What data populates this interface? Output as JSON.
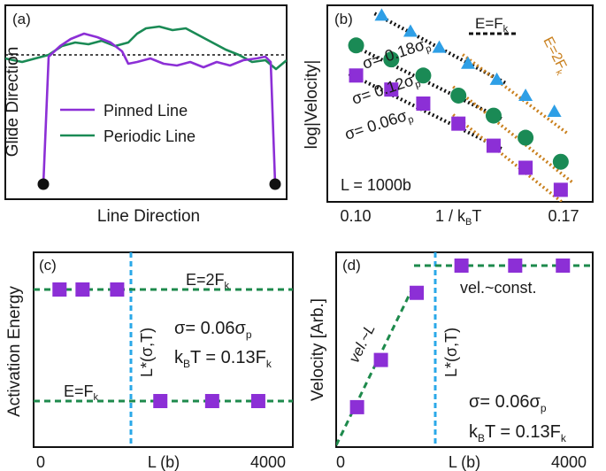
{
  "colors": {
    "purple": "#8c2fd6",
    "green": "#1a8a55",
    "blue_triangle": "#2e9fe6",
    "orange": "#c9801e",
    "dashed_green": "#1e8a4c",
    "dashed_blue": "#2aa8e8",
    "black": "#111111"
  },
  "chart_data": [
    {
      "panel": "(a)",
      "type": "line",
      "xlabel": "Line Direction",
      "ylabel": "Glide Direction",
      "legend": [
        "Pinned Line",
        "Periodic Line"
      ],
      "legend_placement": "center",
      "series": [
        {
          "name": "Pinned Line",
          "endpoints_pinned": true
        },
        {
          "name": "Periodic Line"
        }
      ],
      "reference_line": "dashed horizontal at zero"
    },
    {
      "panel": "(b)",
      "type": "scatter",
      "xlabel": "1 / k_BT",
      "ylabel": "log|Velocity|",
      "xticks": [
        "0.10",
        "0.17"
      ],
      "annotation_L": "L = 1000b",
      "fit_labels": {
        "E1": "E=F",
        "E1_sub": "k",
        "E2": "E=2F",
        "E2_sub": "k"
      },
      "series": [
        {
          "name": "σ= 0.18σp",
          "label_main": "σ= 0.18σ",
          "label_sub": "p",
          "marker": "triangle",
          "x": [
            0.112,
            0.121,
            0.13,
            0.139,
            0.148,
            0.157,
            0.166
          ],
          "y": [
            6.05,
            5.65,
            5.25,
            4.85,
            4.45,
            4.05,
            3.65
          ]
        },
        {
          "name": "σ= 0.12σp",
          "label_main": "σ= 0.12σ",
          "label_sub": "p",
          "marker": "circle",
          "x": [
            0.104,
            0.115,
            0.125,
            0.136,
            0.147,
            0.157,
            0.168
          ],
          "y": [
            5.3,
            4.95,
            4.55,
            4.05,
            3.55,
            3.0,
            2.4
          ]
        },
        {
          "name": "σ= 0.06σp",
          "label_main": "σ= 0.06σ",
          "label_sub": "p",
          "marker": "square",
          "x": [
            0.104,
            0.115,
            0.125,
            0.136,
            0.147,
            0.157,
            0.168
          ],
          "y": [
            4.55,
            4.2,
            3.85,
            3.35,
            2.8,
            2.25,
            1.7
          ]
        }
      ]
    },
    {
      "panel": "(c)",
      "type": "scatter",
      "xlabel": "L (b)",
      "ylabel": "Activation Energy",
      "xticks": [
        "0",
        "4000"
      ],
      "xlim": [
        0,
        4000
      ],
      "vertical_label": "L*(σ,T)",
      "lines": [
        {
          "label_main": "E=2F",
          "label_sub": "k"
        },
        {
          "label_main": "E=F",
          "label_sub": "k"
        }
      ],
      "param_sigma_main": "σ= 0.06σ",
      "param_sigma_sub": "p",
      "param_T_main": "k",
      "param_T_sub": "B",
      "param_T_rest": "T = 0.13F",
      "param_T_rest_sub": "k",
      "x": [
        250,
        650,
        1250,
        2000,
        2900,
        3700
      ],
      "y": [
        2,
        2,
        2,
        1,
        1,
        1
      ]
    },
    {
      "panel": "(d)",
      "type": "scatter",
      "xlabel": "L (b)",
      "ylabel": "Velocity [Arb.]",
      "xticks": [
        "0",
        "4000"
      ],
      "xlim": [
        0,
        4000
      ],
      "vertical_label": "L*(σ,T)",
      "annot_linear": "vel.~L",
      "annot_const": "vel.~const.",
      "param_sigma_main": "σ= 0.06σ",
      "param_sigma_sub": "p",
      "param_T_main": "k",
      "param_T_sub": "B",
      "param_T_rest": "T = 0.13F",
      "param_T_rest_sub": "k",
      "x": [
        250,
        650,
        1250,
        2000,
        2900,
        3700
      ],
      "y": [
        0.22,
        0.48,
        0.85,
        1.0,
        1.0,
        1.0
      ]
    }
  ]
}
